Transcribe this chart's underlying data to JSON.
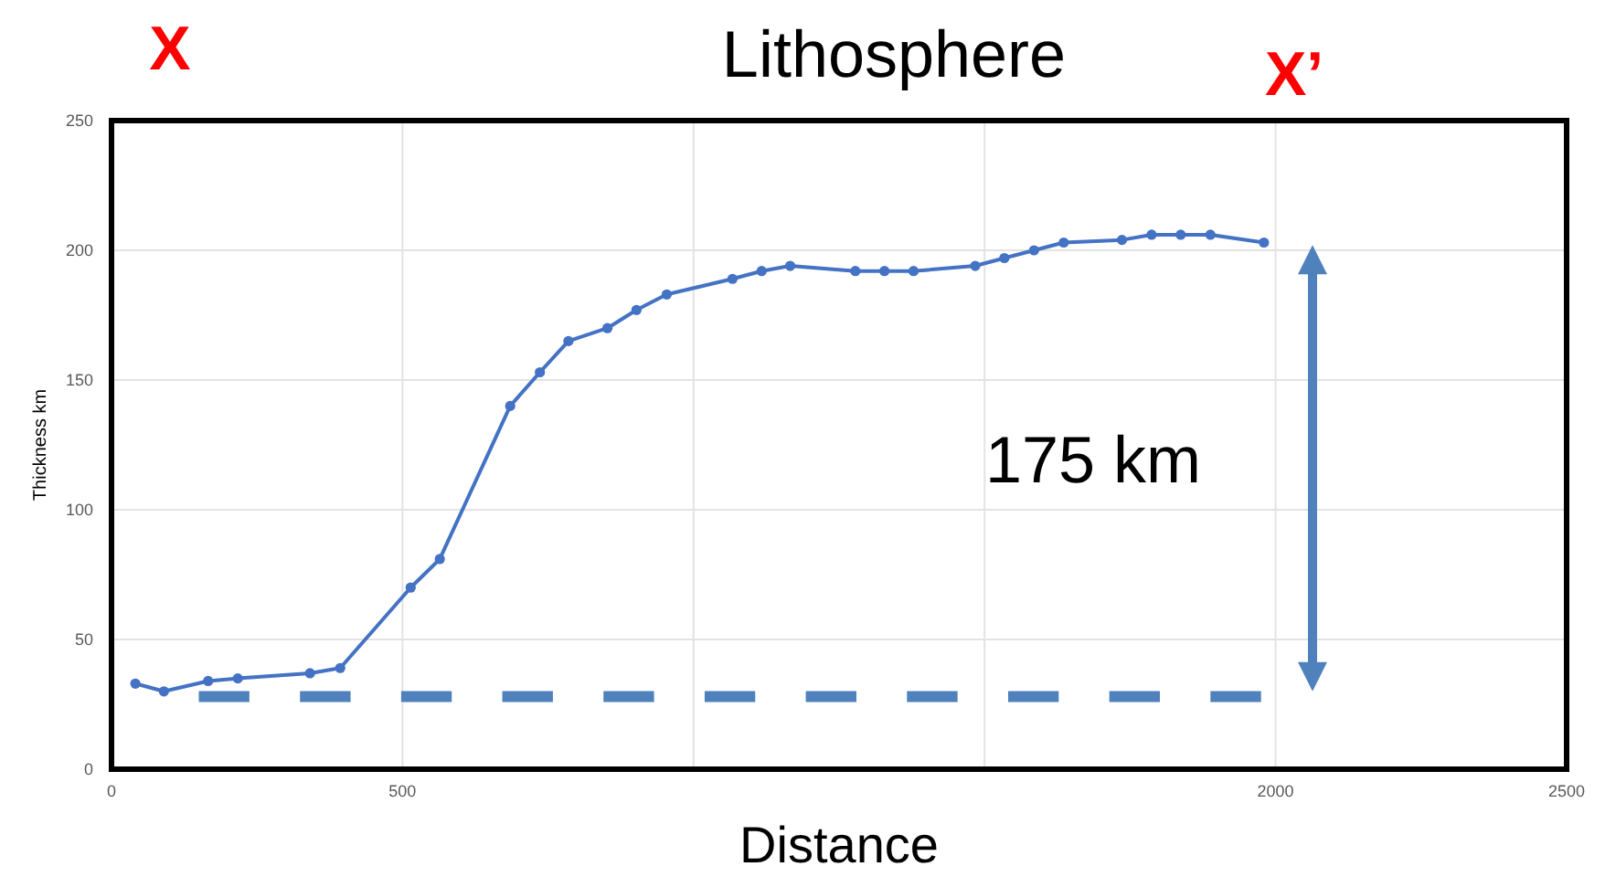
{
  "chart_data": {
    "type": "line",
    "title": "Lithosphere",
    "xlabel": "Distance",
    "ylabel": "Thickness km",
    "annotations": [
      "X",
      "X’",
      "175 km"
    ],
    "xlim": [
      0,
      2500
    ],
    "xticks": [
      0,
      500,
      {
        "value": 1000,
        "label": null
      },
      {
        "value": 1500,
        "label": null
      },
      2000,
      2500
    ],
    "ylim": [
      0,
      250
    ],
    "yticks": [
      0,
      50,
      100,
      150,
      200,
      250
    ],
    "grid": true,
    "series": [
      {
        "color": "#4472c4",
        "marker": "circle",
        "line_style": "solid",
        "x": [
          41,
          90,
          166,
          217,
          341,
          393,
          514,
          564,
          685,
          736,
          785,
          852,
          902,
          954,
          1067,
          1117,
          1166,
          1278,
          1328,
          1378,
          1484,
          1534,
          1585,
          1636,
          1736,
          1787,
          1837,
          1888,
          1980
        ],
        "values": [
          33,
          30,
          34,
          35,
          37,
          39,
          70,
          81,
          140,
          153,
          165,
          170,
          177,
          183,
          189,
          192,
          194,
          192,
          192,
          192,
          194,
          197,
          200,
          203,
          204,
          206,
          206,
          206,
          203
        ]
      },
      {
        "color": "#4f81bd",
        "marker": "none",
        "line_style": "dashed",
        "x": [
          150,
          1975
        ],
        "values": [
          28,
          28
        ]
      }
    ]
  }
}
